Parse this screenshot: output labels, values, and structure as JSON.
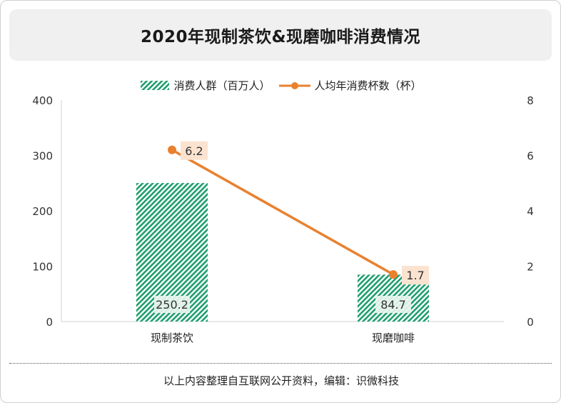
{
  "title": "2020年现制茶饮&现磨咖啡消费情况",
  "source": "以上内容整理自互联网公开资料，编辑：识微科技",
  "colors": {
    "bar": "#1e9e6e",
    "line": "#e9812f",
    "label_bg": "#fbe3d0",
    "bar_label_bg": "#e8f5ee"
  },
  "chart_data": {
    "type": "bar",
    "categories": [
      "现制茶饮",
      "现磨咖啡"
    ],
    "series": [
      {
        "name": "消费人群（百万人）",
        "type": "bar",
        "axis": "left",
        "values": [
          250.2,
          84.7
        ],
        "labels": [
          "250.2",
          "84.7"
        ]
      },
      {
        "name": "人均年消费杯数（杯）",
        "type": "line",
        "axis": "right",
        "values": [
          6.2,
          1.7
        ],
        "labels": [
          "6.2",
          "1.7"
        ]
      }
    ],
    "ylim_left": [
      0,
      400
    ],
    "ylim_right": [
      0,
      8
    ],
    "yticks_left": [
      "0",
      "100",
      "200",
      "300",
      "400"
    ],
    "yticks_right": [
      "0",
      "2",
      "4",
      "6",
      "8"
    ],
    "legend_position": "top",
    "grid": false
  }
}
